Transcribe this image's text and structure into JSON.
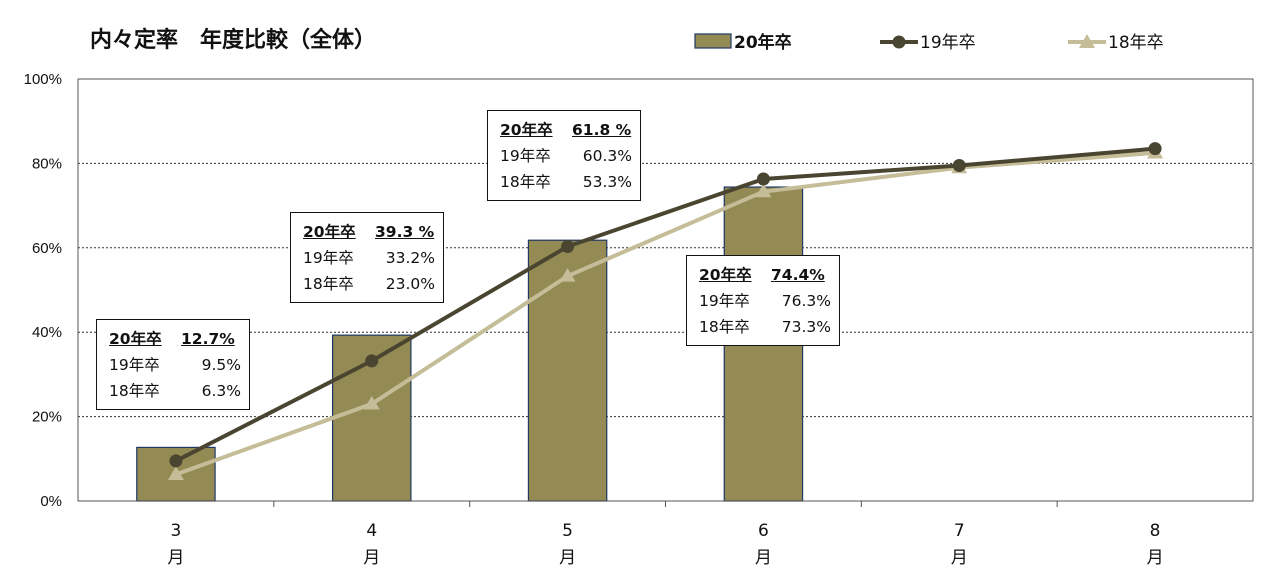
{
  "chart_data": {
    "type": "bar",
    "title": "内々定率　年度比較（全体）",
    "categories": [
      {
        "num": "3",
        "unit": "月"
      },
      {
        "num": "4",
        "unit": "月"
      },
      {
        "num": "5",
        "unit": "月"
      },
      {
        "num": "6",
        "unit": "月"
      },
      {
        "num": "7",
        "unit": "月"
      },
      {
        "num": "8",
        "unit": "月"
      }
    ],
    "ylim": [
      0,
      100
    ],
    "yticks": [
      "0%",
      "20%",
      "40%",
      "60%",
      "80%",
      "100%"
    ],
    "grid": true,
    "legend_position": "top-right",
    "series": [
      {
        "name": "20年卒",
        "kind": "bar",
        "color": "#948a54",
        "values": [
          12.7,
          39.3,
          61.8,
          74.4,
          null,
          null
        ]
      },
      {
        "name": "19年卒",
        "kind": "line",
        "marker": "circle",
        "color": "#4a4530",
        "values": [
          9.5,
          33.2,
          60.3,
          76.3,
          79.5,
          83.5
        ]
      },
      {
        "name": "18年卒",
        "kind": "line",
        "marker": "triangle",
        "color": "#c4bd97",
        "values": [
          6.3,
          23.0,
          53.3,
          73.3,
          79.0,
          82.5
        ]
      }
    ],
    "annotations": [
      {
        "head_label": "20年卒",
        "head_value": "12.7%",
        "rows": [
          {
            "label": "19年卒",
            "value": "9.5%"
          },
          {
            "label": "18年卒",
            "value": "6.3%"
          }
        ]
      },
      {
        "head_label": "20年卒",
        "head_value": "39.3 %",
        "rows": [
          {
            "label": "19年卒",
            "value": "33.2%"
          },
          {
            "label": "18年卒",
            "value": "23.0%"
          }
        ]
      },
      {
        "head_label": "20年卒",
        "head_value": "61.8 %",
        "rows": [
          {
            "label": "19年卒",
            "value": "60.3%"
          },
          {
            "label": "18年卒",
            "value": "53.3%"
          }
        ]
      },
      {
        "head_label": "20年卒",
        "head_value": "74.4%",
        "rows": [
          {
            "label": "19年卒",
            "value": "76.3%"
          },
          {
            "label": "18年卒",
            "value": "73.3%"
          }
        ]
      }
    ]
  }
}
